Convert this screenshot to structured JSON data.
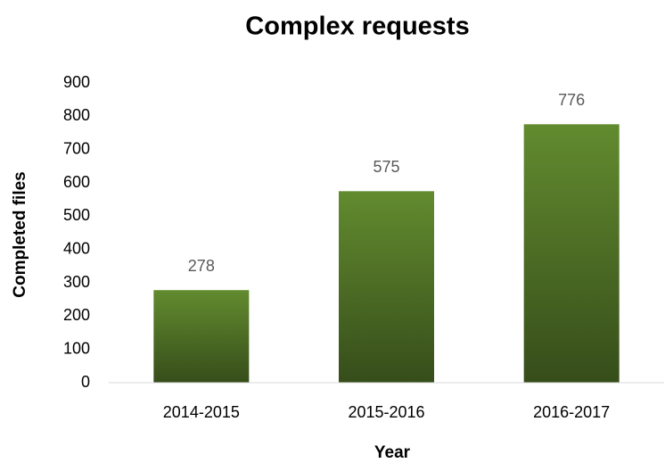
{
  "chart_data": {
    "type": "bar",
    "title": "Complex requests",
    "x_label": "Year",
    "y_label": "Completed files",
    "categories": [
      "2014-2015",
      "2015-2016",
      "2016-2017"
    ],
    "values": [
      278,
      575,
      776
    ],
    "color": "#628b2f",
    "ylim": [
      0,
      900
    ],
    "yticks": [
      0,
      100,
      200,
      300,
      400,
      500,
      600,
      700,
      800,
      900
    ],
    "grid": false,
    "data_labels": true
  }
}
